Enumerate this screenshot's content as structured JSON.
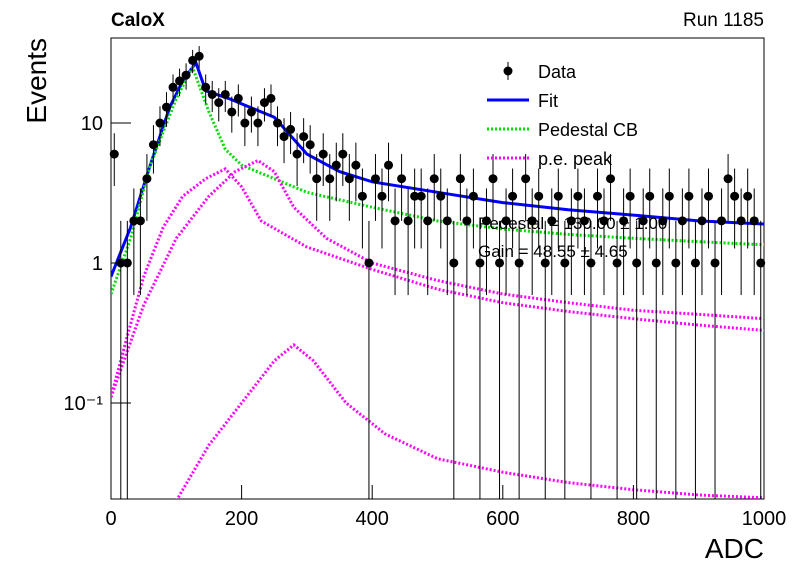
{
  "chart_data": {
    "type": "scatter",
    "title": "CaloX",
    "subtitle": "Run 1185",
    "xlabel": "ADC",
    "ylabel": "Events",
    "xlim": [
      0,
      1000
    ],
    "xticks": [
      0,
      200,
      400,
      600,
      800,
      1000
    ],
    "ylim": [
      0.0206,
      40.5
    ],
    "yticks": [
      {
        "value": 0.1,
        "label": "10⁻¹"
      },
      1,
      10
    ],
    "log_y": true,
    "legend": "upper-right",
    "annotations": [
      "Pedestal = 130.00 ± 1.00",
      "Gain = 48.55 ± 4.65"
    ],
    "data": {
      "name": "Data",
      "color": "#000000",
      "x": [
        5,
        15,
        25,
        35,
        45,
        55,
        65,
        75,
        85,
        95,
        105,
        115,
        125,
        135,
        145,
        155,
        165,
        175,
        185,
        195,
        205,
        215,
        225,
        235,
        245,
        255,
        265,
        275,
        285,
        295,
        305,
        315,
        325,
        335,
        345,
        355,
        365,
        375,
        385,
        395,
        405,
        415,
        425,
        435,
        445,
        455,
        465,
        475,
        485,
        495,
        505,
        515,
        525,
        535,
        545,
        555,
        565,
        575,
        585,
        595,
        605,
        615,
        625,
        635,
        645,
        655,
        665,
        675,
        685,
        695,
        705,
        715,
        725,
        735,
        745,
        755,
        765,
        775,
        785,
        795,
        805,
        815,
        825,
        835,
        845,
        855,
        865,
        875,
        885,
        895,
        905,
        915,
        925,
        935,
        945,
        955,
        965,
        975,
        985,
        995
      ],
      "values": [
        6,
        1,
        1,
        2,
        2,
        4,
        7,
        10,
        13,
        18,
        20,
        22,
        28,
        30,
        18,
        16,
        14,
        16,
        12,
        15,
        10,
        12,
        10,
        14,
        15,
        10,
        8,
        9,
        6,
        8,
        7,
        4,
        6,
        4,
        5,
        6,
        4,
        5,
        3,
        1,
        4,
        3,
        5,
        2,
        4,
        2,
        3,
        3,
        2,
        4,
        3,
        2,
        1,
        4,
        2,
        3,
        1,
        2,
        4,
        1,
        2,
        3,
        1,
        4,
        2,
        3,
        1,
        2,
        3,
        1,
        2,
        3,
        2,
        1,
        3,
        2,
        4,
        1,
        2,
        3,
        1,
        2,
        3,
        1,
        2,
        3,
        1,
        2,
        3,
        1,
        2,
        3,
        1,
        2,
        4,
        3,
        2,
        3,
        2,
        1
      ],
      "errors": [
        2.45,
        1,
        1,
        1.41,
        1.41,
        2,
        2.65,
        3.16,
        3.61,
        4.24,
        4.47,
        4.69,
        5.29,
        5.48,
        4.24,
        4,
        3.74,
        4,
        3.46,
        3.87,
        3.16,
        3.46,
        3.16,
        3.74,
        3.87,
        3.16,
        2.83,
        3,
        2.45,
        2.83,
        2.65,
        2,
        2.45,
        2,
        2.24,
        2.45,
        2,
        2.24,
        1.73,
        1,
        2,
        1.73,
        2.24,
        1.41,
        2,
        1.41,
        1.73,
        1.73,
        1.41,
        2,
        1.73,
        1.41,
        1,
        2,
        1.41,
        1.73,
        1,
        1.41,
        2,
        1,
        1.41,
        1.73,
        1,
        2,
        1.41,
        1.73,
        1,
        1.41,
        1.73,
        1,
        1.41,
        1.73,
        1.41,
        1,
        1.73,
        1.41,
        2,
        1,
        1.41,
        1.73,
        1,
        1.41,
        1.73,
        1,
        1.41,
        1.73,
        1,
        1.41,
        1.73,
        1,
        1.41,
        1.73,
        1,
        1.41,
        2,
        1.73,
        1.41,
        1.73,
        1.41,
        1
      ]
    },
    "curves": [
      {
        "name": "Fit",
        "color": "#0000ff",
        "style": "solid",
        "x": [
          0,
          30,
          60,
          90,
          110,
          130,
          145,
          180,
          230,
          250,
          300,
          350,
          400,
          500,
          600,
          700,
          800,
          900,
          1000
        ],
        "values": [
          0.8,
          1.8,
          5,
          13,
          20,
          27,
          17,
          15,
          12,
          11,
          6,
          4.5,
          3.8,
          3.2,
          2.7,
          2.4,
          2.2,
          2.0,
          1.9
        ]
      },
      {
        "name": "Pedestal CB",
        "color": "#00dd00",
        "style": "dotted",
        "x": [
          0,
          30,
          60,
          100,
          125,
          150,
          175,
          200,
          250,
          300,
          400,
          500,
          600,
          700,
          800,
          900,
          1000
        ],
        "values": [
          0.6,
          1.5,
          5,
          15,
          25,
          12,
          6.5,
          5,
          4,
          3.2,
          2.5,
          2.0,
          1.75,
          1.6,
          1.5,
          1.42,
          1.35
        ]
      },
      {
        "name": "p.e. peak",
        "color": "#ff00ff",
        "style": "dotted",
        "x": [
          0,
          25,
          50,
          80,
          110,
          145,
          175,
          200,
          230,
          300,
          400,
          500,
          600,
          700,
          800,
          900,
          1000
        ],
        "values": [
          0.11,
          0.3,
          0.8,
          1.8,
          3,
          4,
          4.7,
          3.5,
          2,
          1.3,
          0.9,
          0.65,
          0.52,
          0.45,
          0.4,
          0.36,
          0.33
        ]
      },
      {
        "color": "#ff00ff",
        "style": "dotted",
        "x": [
          0,
          50,
          100,
          150,
          190,
          225,
          250,
          280,
          330,
          400,
          500,
          600,
          700,
          800,
          900,
          1000
        ],
        "values": [
          0.11,
          0.5,
          1.5,
          3,
          4.5,
          5.4,
          4.5,
          2.5,
          1.5,
          1.0,
          0.75,
          0.6,
          0.52,
          0.46,
          0.43,
          0.4
        ]
      },
      {
        "color": "#ff00ff",
        "style": "dotted",
        "x": [
          100,
          150,
          200,
          250,
          280,
          310,
          360,
          420,
          500,
          600,
          700,
          800,
          900,
          1000
        ],
        "values": [
          0.02,
          0.05,
          0.1,
          0.2,
          0.26,
          0.2,
          0.1,
          0.06,
          0.04,
          0.032,
          0.027,
          0.024,
          0.022,
          0.021
        ]
      }
    ]
  }
}
